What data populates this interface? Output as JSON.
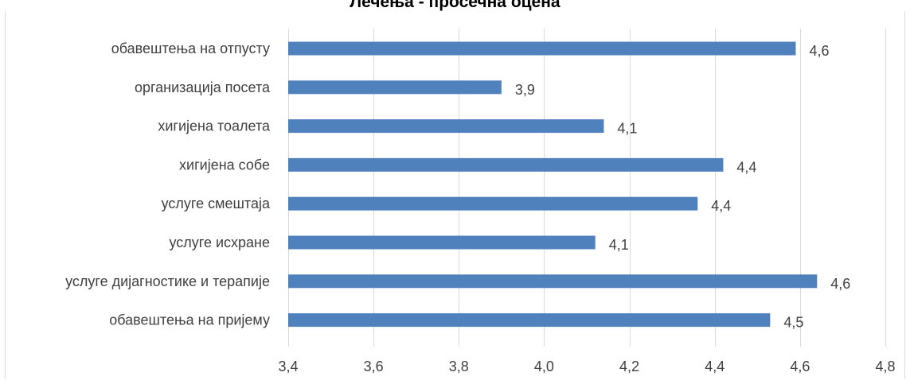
{
  "chart_data": {
    "type": "bar",
    "orientation": "horizontal",
    "title": "Лечења - просечна оцена",
    "categories": [
      "обавештења на отпусту",
      "организација посета",
      "хигијена тоалета",
      "хигијена собе",
      "услуге смештаја",
      "услуге исхране",
      "услуге дијагностике и терапије",
      "обавештења на пријему"
    ],
    "values": [
      4.59,
      3.9,
      4.14,
      4.42,
      4.36,
      4.12,
      4.64,
      4.53
    ],
    "data_labels": [
      "4,6",
      "3,9",
      "4,1",
      "4,4",
      "4,4",
      "4,1",
      "4,6",
      "4,5"
    ],
    "xlim": [
      3.4,
      4.8
    ],
    "x_ticks": [
      "3,4",
      "3,6",
      "3,8",
      "4,0",
      "4,2",
      "4,4",
      "4,6",
      "4,8"
    ],
    "x_tick_values": [
      3.4,
      3.6,
      3.8,
      4.0,
      4.2,
      4.4,
      4.6,
      4.8
    ],
    "grid": "vertical",
    "legend": "none",
    "bar_color": "#4f81bd",
    "grid_color": "#d9d9d9",
    "text_color": "#404040"
  }
}
